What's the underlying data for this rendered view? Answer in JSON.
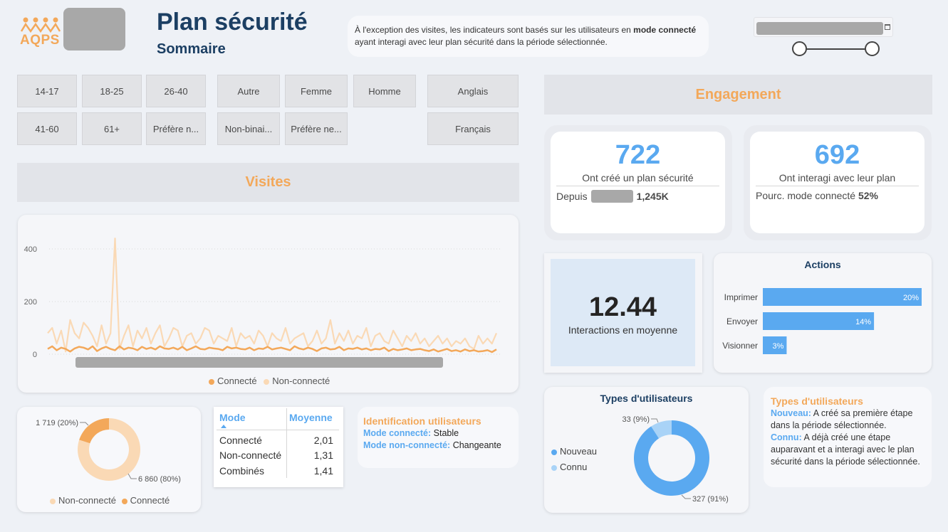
{
  "header": {
    "logo_text": "AQPS",
    "title": "Plan sécurité",
    "subtitle": "Sommaire",
    "info_part1": "À l'exception des visites, les indicateurs sont basés sur les utilisateurs en ",
    "info_bold": "mode connecté",
    "info_part2": " ayant interagi avec leur plan sécurité dans la période sélectionnée."
  },
  "colors": {
    "accent_orange": "#f3a85a",
    "accent_orange_light": "#fad9b5",
    "accent_blue": "#5aa9f0",
    "accent_blue_light": "#a9d3f7",
    "navy": "#1c3f63"
  },
  "slicers": {
    "age": [
      "14-17",
      "18-25",
      "26-40",
      "41-60",
      "61+",
      "Préfère n..."
    ],
    "gender": [
      "Autre",
      "Femme",
      "Homme",
      "Non-binai...",
      "Préfère ne..."
    ],
    "language": [
      "Anglais",
      "Français"
    ]
  },
  "sections": {
    "visits": "Visites",
    "engagement": "Engagement"
  },
  "visits_chart": {
    "legend": [
      "Connecté",
      "Non-connecté"
    ]
  },
  "chart_data": [
    {
      "type": "line",
      "ylim": [
        0,
        460
      ],
      "y_ticks": [
        "0",
        "200",
        "400"
      ],
      "series": [
        {
          "name": "Connecté",
          "values": [
            20,
            30,
            15,
            25,
            20,
            10,
            22,
            28,
            25,
            18,
            30,
            12,
            22,
            28,
            20,
            15,
            30,
            18,
            25,
            22,
            15,
            28,
            20,
            25,
            18,
            30,
            22,
            20,
            25,
            18,
            28,
            15,
            22,
            30,
            20,
            18,
            25,
            22,
            20,
            15,
            28,
            22,
            25,
            20,
            18,
            25,
            15,
            22,
            20,
            28,
            18,
            22,
            25,
            20,
            15,
            30,
            22,
            18,
            25,
            20,
            12,
            22,
            25,
            18,
            20,
            28,
            15,
            22,
            20,
            25,
            18,
            22,
            15,
            20,
            18,
            25,
            12,
            20,
            15,
            18,
            22,
            15,
            18,
            20,
            15,
            12,
            18,
            10,
            15,
            20,
            12,
            15,
            10,
            18,
            12,
            15,
            10,
            12,
            15,
            8,
            18
          ]
        },
        {
          "name": "Non-connecté",
          "values": [
            80,
            100,
            40,
            90,
            10,
            130,
            80,
            60,
            120,
            100,
            70,
            30,
            110,
            40,
            80,
            440,
            20,
            70,
            110,
            30,
            90,
            60,
            100,
            40,
            80,
            110,
            30,
            60,
            100,
            90,
            30,
            70,
            80,
            40,
            60,
            100,
            90,
            40,
            70,
            60,
            50,
            100,
            30,
            80,
            60,
            70,
            40,
            90,
            70,
            30,
            80,
            60,
            50,
            100,
            40,
            60,
            70,
            80,
            30,
            50,
            90,
            40,
            60,
            130,
            40,
            80,
            50,
            90,
            40,
            70,
            60,
            100,
            30,
            70,
            80,
            50,
            40,
            90,
            60,
            30,
            70,
            50,
            80,
            40,
            60,
            30,
            50,
            70,
            40,
            60,
            30,
            50,
            40,
            60,
            30,
            20,
            70,
            40,
            60,
            40,
            80
          ]
        }
      ]
    },
    {
      "type": "pie",
      "labels": [
        "Non-connecté",
        "Connecté"
      ],
      "values": [
        6860,
        1719
      ],
      "data_labels": [
        "6 860 (80%)",
        "1 719 (20%)"
      ],
      "legend": [
        "Non-connecté",
        "Connecté"
      ]
    },
    {
      "type": "bar",
      "title": "Actions",
      "categories": [
        "Imprimer",
        "Envoyer",
        "Visionner"
      ],
      "values": [
        20,
        14,
        3
      ],
      "data_labels": [
        "20%",
        "14%",
        "3%"
      ]
    },
    {
      "type": "pie",
      "title": "Types d'utilisateurs",
      "labels": [
        "Nouveau",
        "Connu"
      ],
      "values": [
        327,
        33
      ],
      "data_labels": [
        "327 (91%)",
        "33 (9%)"
      ],
      "legend": [
        "Nouveau",
        "Connu"
      ]
    }
  ],
  "table": {
    "headers": [
      "Mode",
      "Moyenne"
    ],
    "rows": [
      {
        "mode": "Connecté",
        "value": "2,01"
      },
      {
        "mode": "Non-connecté",
        "value": "1,31"
      },
      {
        "mode": "Combinés",
        "value": "1,41"
      }
    ]
  },
  "identification": {
    "title": "Identification utilisateurs",
    "line1_label": "Mode connecté:",
    "line1_value": " Stable",
    "line2_label": "Mode non-connecté:",
    "line2_value": " Changeante"
  },
  "kpi1": {
    "value": "722",
    "label": "Ont créé un plan sécurité",
    "since_label": "Depuis",
    "since_value": "1,245K"
  },
  "kpi2": {
    "value": "692",
    "label": "Ont interagi avec leur plan",
    "pct_label": "Pourc. mode connecté",
    "pct_value": "52%"
  },
  "kpi3": {
    "value": "12.44",
    "label": "Interactions en moyenne"
  },
  "user_types_text": {
    "title": "Types d'utilisateurs",
    "nouveau_label": "Nouveau:",
    "nouveau_desc": " A créé sa première étape dans la période sélectionnée.",
    "connu_label": "Connu:",
    "connu_desc": " A déjà créé une étape auparavant et a interagi avec le plan sécurité dans la période sélectionnée."
  }
}
